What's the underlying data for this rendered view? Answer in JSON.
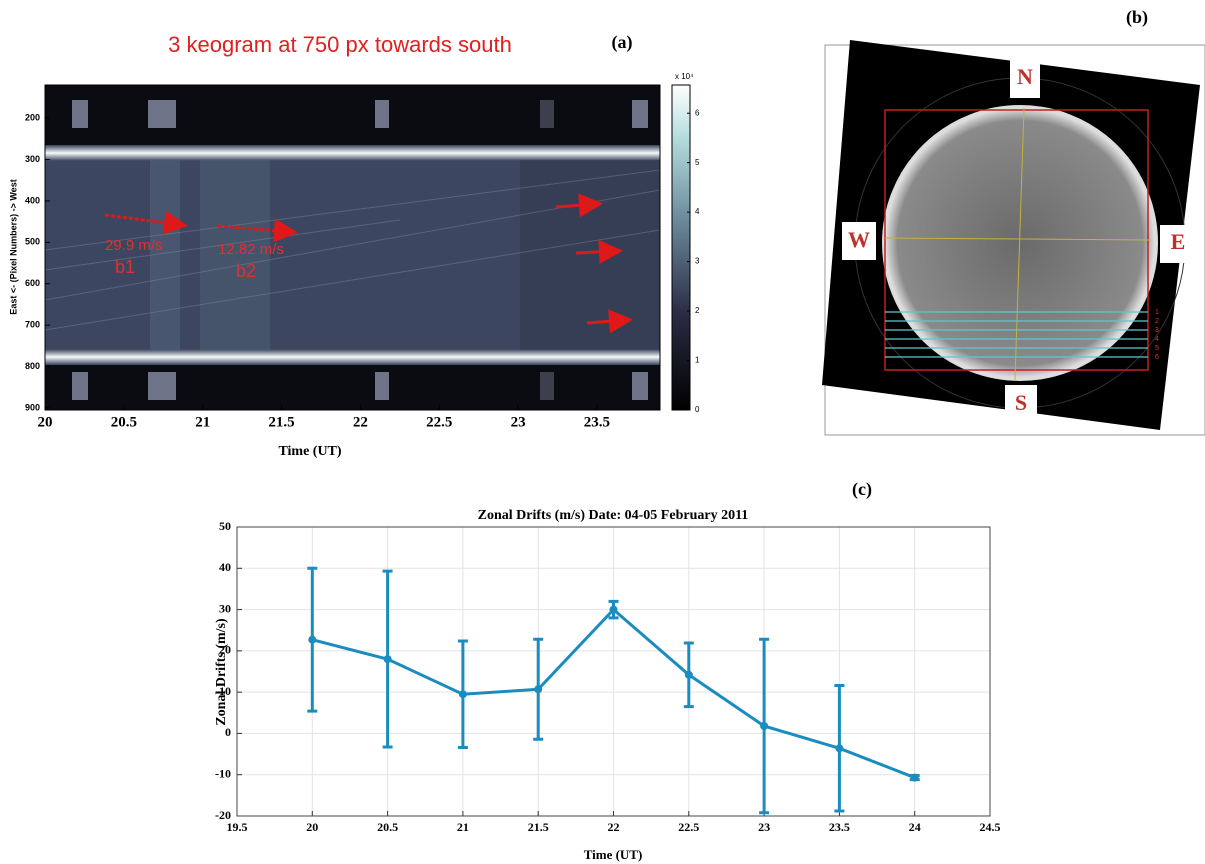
{
  "chart_data": [
    {
      "type": "heatmap",
      "title": "3 keogram at 750 px towards south",
      "panel": "(a)",
      "xlabel": "Time (UT)",
      "ylabel": "East <- (Pixel Numbers) -> West",
      "xlim": [
        20,
        23.9
      ],
      "xticks": [
        20,
        20.5,
        21,
        21.5,
        22,
        22.5,
        23,
        23.5
      ],
      "ylim": [
        120,
        905
      ],
      "yticks": [
        200,
        300,
        400,
        500,
        600,
        700,
        800,
        900
      ],
      "colorbar": {
        "lim": [
          0,
          6.57
        ],
        "ticks": [
          0,
          1,
          2,
          3,
          4,
          5,
          6
        ],
        "label": "x 10⁴"
      },
      "annotations": [
        "29.9 m/s",
        "b1",
        "12.82 m/s",
        "b2"
      ]
    },
    {
      "type": "image",
      "panel": "(b)",
      "directions": [
        "N",
        "W",
        "E",
        "S"
      ],
      "row_labels": [
        "1",
        "2",
        "3",
        "4",
        "5",
        "6"
      ]
    },
    {
      "type": "line",
      "panel": "(c)",
      "title": "Zonal Drifts (m/s) Date: 04-05 February 2011",
      "xlabel": "Time (UT)",
      "ylabel": "Zonal Drifts (m/s)",
      "x": [
        20,
        20.5,
        21,
        21.5,
        22,
        22.5,
        23,
        23.5,
        24
      ],
      "series": [
        {
          "color": "#1a8cc0",
          "values": [
            22.7,
            18,
            9.5,
            10.7,
            30,
            14.2,
            1.8,
            -3.6,
            -10.7
          ],
          "errors": [
            17.3,
            21.3,
            12.9,
            12.1,
            2,
            7.7,
            21,
            15.2,
            0.5
          ]
        }
      ],
      "xlim": [
        19.5,
        24.5
      ],
      "xticks": [
        19.5,
        20,
        20.5,
        21,
        21.5,
        22,
        22.5,
        23,
        23.5,
        24,
        24.5
      ],
      "ylim": [
        -20,
        50
      ],
      "yticks": [
        -20,
        -10,
        0,
        10,
        20,
        30,
        40,
        50
      ],
      "grid": true
    }
  ]
}
